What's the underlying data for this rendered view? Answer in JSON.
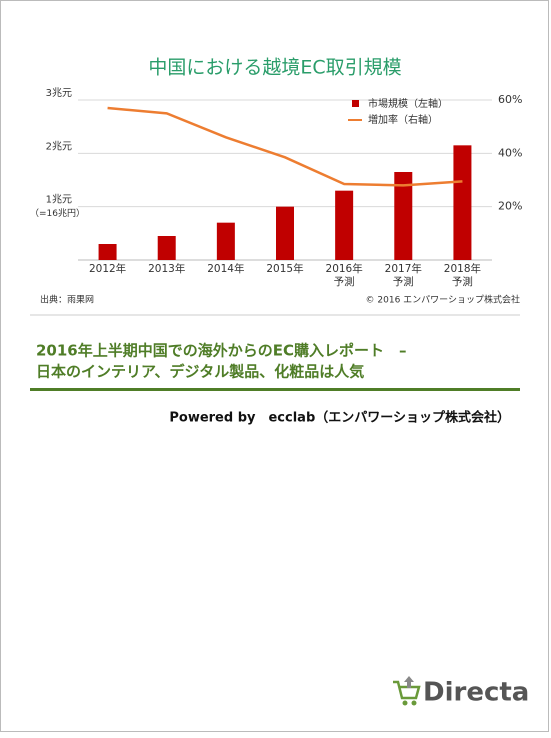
{
  "chart_data": {
    "type": "bar",
    "title": "中国における越境EC取引規模",
    "categories": [
      "2012年",
      "2013年",
      "2014年",
      "2015年",
      "2016年",
      "2017年",
      "2018年"
    ],
    "category_notes": [
      null,
      null,
      null,
      null,
      "予測",
      "予測",
      "予測"
    ],
    "series": [
      {
        "name": "市場規模（左軸）",
        "color": "#c00000",
        "values": [
          0.3,
          0.45,
          0.7,
          1.0,
          1.3,
          1.65,
          2.15
        ]
      },
      {
        "name": "増加率（右軸）",
        "color": "#ed7d31",
        "type": "line",
        "axis": "y2",
        "values": [
          57,
          55,
          46,
          38.5,
          28.5,
          28,
          29.5
        ]
      }
    ],
    "ylim": [
      0,
      3
    ],
    "yticks": [
      {
        "value": 1,
        "label": "1兆元"
      },
      {
        "value": 2,
        "label": "2兆元"
      },
      {
        "value": 3,
        "label": "3兆元"
      }
    ],
    "ytick_note": "（=16兆円）",
    "y2lim": [
      0,
      60
    ],
    "y2ticks": [
      {
        "value": 20,
        "label": "20%"
      },
      {
        "value": 40,
        "label": "40%"
      },
      {
        "value": 60,
        "label": "60%"
      }
    ],
    "grid": true,
    "legend": "top-right",
    "source": "出典：雨果网",
    "copyright": "© 2016 エンパワーショップ株式会社"
  },
  "headline": [
    "2016年上半期中国での海外からのEC購入レポート　–",
    "日本のインテリア、デジタル製品、化粧品は人気"
  ],
  "powered_by": "Powered by　ecclab（エンパワーショップ株式会社）",
  "logo": "Directa"
}
